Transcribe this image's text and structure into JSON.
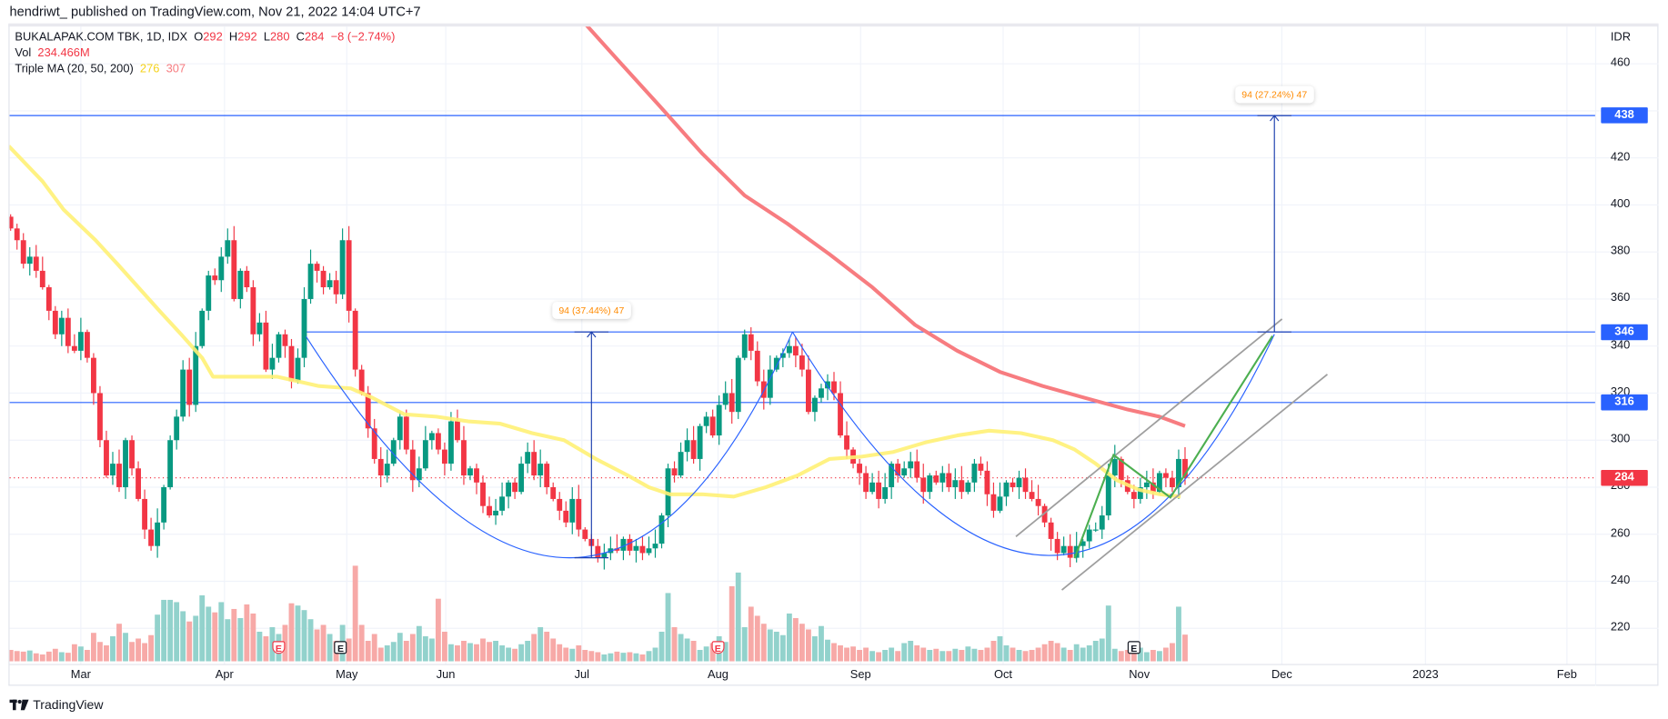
{
  "header": {
    "published": "hendriwt_ published on TradingView.com, Nov 21, 2022 14:04 UTC+7"
  },
  "legend": {
    "symbol": "BUKALAPAK.COM TBK, 1D, IDX",
    "o_label": "O",
    "o": "292",
    "h_label": "H",
    "h": "292",
    "l_label": "L",
    "l": "280",
    "c_label": "C",
    "c": "284",
    "change": "−8 (−2.74%)",
    "vol_label": "Vol",
    "vol": "234.466M",
    "ma_label": "Triple MA (20, 50, 200)",
    "ma50": "276",
    "ma200": "307"
  },
  "footer": {
    "brand": "TradingView"
  },
  "colors": {
    "up": "#089981",
    "down": "#f23645",
    "vol_up": "#92d2cc",
    "vol_down": "#f7a9a7",
    "ma50": "#fff176",
    "ma200": "#f77c80",
    "drawing_blue": "#2962ff",
    "channel": "#9e9e9e",
    "pattern_green": "#4caf50"
  },
  "chart_data": {
    "type": "candlestick",
    "title": "BUKALAPAK.COM TBK, 1D, IDX",
    "ylabel": "IDR",
    "currency": "IDR",
    "ylim": [
      203,
      478
    ],
    "y_ticks": [
      460,
      440,
      420,
      400,
      380,
      360,
      340,
      320,
      300,
      280,
      260,
      240,
      220
    ],
    "y_ticks_shown": [
      "460",
      "420",
      "400",
      "380",
      "360",
      "340",
      "320",
      "300",
      "280",
      "260",
      "240",
      "220"
    ],
    "x_ticks": [
      "Mar",
      "Apr",
      "May",
      "Jun",
      "Jul",
      "Aug",
      "Sep",
      "Oct",
      "Nov",
      "Dec",
      "2023",
      "Feb"
    ],
    "first_open": 395,
    "closes": [
      390,
      385,
      375,
      378,
      372,
      365,
      355,
      345,
      352,
      340,
      338,
      346,
      335,
      320,
      300,
      285,
      290,
      280,
      300,
      288,
      275,
      262,
      255,
      265,
      280,
      300,
      310,
      330,
      315,
      340,
      355,
      370,
      368,
      378,
      385,
      360,
      372,
      365,
      345,
      350,
      330,
      335,
      345,
      340,
      325,
      335,
      360,
      375,
      372,
      365,
      368,
      362,
      385,
      355,
      330,
      320,
      305,
      292,
      285,
      290,
      300,
      310,
      296,
      283,
      288,
      300,
      303,
      296,
      290,
      308,
      300,
      285,
      288,
      282,
      272,
      268,
      270,
      276,
      282,
      278,
      290,
      295,
      285,
      290,
      280,
      275,
      270,
      265,
      275,
      262,
      258,
      255,
      250,
      252,
      254,
      253,
      258,
      253,
      255,
      252,
      254,
      256,
      268,
      288,
      285,
      295,
      300,
      292,
      306,
      310,
      302,
      315,
      320,
      312,
      335,
      345,
      338,
      325,
      318,
      330,
      335,
      337,
      340,
      336,
      330,
      312,
      318,
      322,
      325,
      320,
      302,
      296,
      290,
      286,
      278,
      282,
      275,
      280,
      290,
      285,
      288,
      291,
      284,
      278,
      285,
      282,
      286,
      280,
      283,
      278,
      282,
      290,
      287,
      277,
      270,
      276,
      282,
      280,
      284,
      278,
      275,
      272,
      265,
      258,
      252,
      255,
      250,
      255,
      257,
      262,
      262,
      268,
      285,
      292,
      283,
      278,
      275,
      280,
      282,
      278,
      286,
      284,
      280,
      292,
      284
    ],
    "volumes_m": [
      100,
      90,
      85,
      95,
      70,
      60,
      85,
      110,
      80,
      75,
      150,
      130,
      100,
      250,
      170,
      140,
      220,
      330,
      250,
      170,
      200,
      160,
      230,
      410,
      540,
      540,
      520,
      440,
      350,
      400,
      580,
      480,
      430,
      520,
      370,
      460,
      380,
      500,
      420,
      260,
      220,
      300,
      240,
      320,
      510,
      490,
      450,
      370,
      280,
      320,
      240,
      180,
      320,
      200,
      840,
      320,
      180,
      240,
      120,
      140,
      170,
      250,
      180,
      240,
      310,
      220,
      200,
      550,
      260,
      150,
      140,
      180,
      160,
      150,
      200,
      170,
      180,
      140,
      120,
      110,
      150,
      180,
      240,
      300,
      260,
      200,
      150,
      120,
      110,
      140,
      100,
      90,
      80,
      60,
      70,
      85,
      75,
      80,
      70,
      60,
      90,
      120,
      260,
      600,
      300,
      240,
      200,
      180,
      100,
      130,
      160,
      220,
      170,
      660,
      780,
      300,
      480,
      400,
      330,
      280,
      260,
      230,
      420,
      380,
      330,
      280,
      220,
      310,
      190,
      160,
      140,
      120,
      130,
      100,
      120,
      90,
      80,
      100,
      120,
      90,
      160,
      180,
      140,
      120,
      100,
      110,
      90,
      90,
      110,
      100,
      130,
      110,
      100,
      120,
      180,
      220,
      140,
      120,
      100,
      90,
      100,
      120,
      150,
      180,
      160,
      120,
      100,
      150,
      120,
      140,
      180,
      200,
      490,
      110,
      90,
      100,
      110,
      120,
      80,
      100,
      90,
      120,
      160,
      480,
      234.466
    ],
    "ma50": [
      [
        -0.3,
        425
      ],
      [
        5,
        410
      ],
      [
        8.3,
        398
      ],
      [
        13.3,
        385
      ],
      [
        16.7,
        375
      ],
      [
        20,
        365
      ],
      [
        23.3,
        355
      ],
      [
        26.7,
        345
      ],
      [
        30,
        335
      ],
      [
        31.7,
        327
      ],
      [
        36.7,
        327
      ],
      [
        41.7,
        327
      ],
      [
        45,
        325
      ],
      [
        48.3,
        323
      ],
      [
        53.3,
        322
      ],
      [
        56.7,
        318
      ],
      [
        61.7,
        311
      ],
      [
        66.7,
        310
      ],
      [
        71.7,
        308
      ],
      [
        76.7,
        307
      ],
      [
        81.7,
        303
      ],
      [
        86.7,
        300
      ],
      [
        91.7,
        292
      ],
      [
        96.7,
        285
      ],
      [
        100,
        280
      ],
      [
        103.3,
        277
      ],
      [
        108.3,
        277
      ],
      [
        113.3,
        276
      ],
      [
        118.3,
        280
      ],
      [
        123.3,
        285
      ],
      [
        128.3,
        292
      ],
      [
        133.3,
        293
      ],
      [
        138.3,
        295
      ],
      [
        143.3,
        299
      ],
      [
        148.3,
        302
      ],
      [
        153.3,
        304
      ],
      [
        158.3,
        303
      ],
      [
        163.3,
        300
      ],
      [
        166.7,
        296
      ],
      [
        170,
        290
      ],
      [
        173.3,
        283
      ],
      [
        176.7,
        279
      ],
      [
        180,
        277
      ],
      [
        183.3,
        276
      ]
    ],
    "ma200": [
      [
        89.7,
        478
      ],
      [
        95,
        462
      ],
      [
        101.7,
        442
      ],
      [
        108.3,
        422
      ],
      [
        115,
        404
      ],
      [
        121.7,
        392
      ],
      [
        128.3,
        379
      ],
      [
        135,
        365
      ],
      [
        141.7,
        349
      ],
      [
        148.3,
        338
      ],
      [
        155,
        329
      ],
      [
        161.7,
        323
      ],
      [
        168.3,
        318
      ],
      [
        175,
        313
      ],
      [
        180,
        310
      ],
      [
        184,
        306
      ]
    ],
    "horizontal_levels": [
      438,
      346,
      316
    ],
    "last_price": 284,
    "measures": [
      {
        "label": "94 (37.44%) 47",
        "from": 250,
        "to": 346,
        "bar": 91
      },
      {
        "label": "94 (27.24%) 47",
        "from": 346,
        "to": 438,
        "bar": 198
      }
    ],
    "earnings_marks": [
      {
        "bar": 42,
        "type": "E",
        "color": "down"
      },
      {
        "bar": 51.7,
        "type": "E",
        "color": "neutral"
      },
      {
        "bar": 110.8,
        "type": "E",
        "color": "down"
      },
      {
        "bar": 176,
        "type": "E",
        "color": "neutral"
      }
    ],
    "cup_curves": [
      {
        "start": [
          46.3,
          344
        ],
        "bottom": [
          91,
          250
        ],
        "end": [
          122.5,
          346
        ]
      },
      {
        "start": [
          122.5,
          346
        ],
        "bottom": [
          165,
          251
        ],
        "end": [
          198,
          345
        ]
      }
    ],
    "channel_lines": [
      [
        [
          157.5,
          259
        ],
        [
          199.2,
          351.5
        ]
      ],
      [
        [
          164.7,
          236.3
        ],
        [
          206.3,
          328
        ]
      ]
    ],
    "pattern_lines": [
      [
        166.7,
        249.8
      ],
      [
        172.8,
        293.7
      ],
      [
        181.7,
        275.6
      ],
      [
        197.7,
        344.3
      ]
    ]
  }
}
